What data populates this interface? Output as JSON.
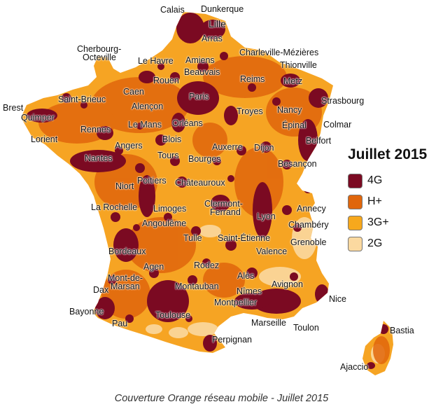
{
  "legend": {
    "title": "Juillet 2015",
    "items": [
      {
        "label": "4G",
        "color": "#7b0a22"
      },
      {
        "label": "H+",
        "color": "#e0660c"
      },
      {
        "label": "3G+",
        "color": "#f7a81c"
      },
      {
        "label": "2G",
        "color": "#fbd9a0"
      }
    ]
  },
  "caption": "Couverture Orange réseau mobile - Juillet 2015",
  "cities": [
    "Calais",
    "Dunkerque",
    "Lille",
    "Arras",
    "Cherbourg-",
    "Octeville",
    "Le Havre",
    "Amiens",
    "Charleville-Mézières",
    "Thionville",
    "Beauvais",
    "Rouen",
    "Reims",
    "Metz",
    "Caen",
    "Saint-Brieuc",
    "Paris",
    "Brest",
    "Strasbourg",
    "Alençon",
    "Troyes",
    "Nancy",
    "Quimper",
    "Rennes",
    "Le Mans",
    "Orléans",
    "Épinal",
    "Colmar",
    "Lorient",
    "Blois",
    "Belfort",
    "Angers",
    "Auxerre",
    "Dijon",
    "Nantes",
    "Tours",
    "Bourges",
    "Besançon",
    "Niort",
    "Poitiers",
    "Châteauroux",
    "Annecy",
    "La Rochelle",
    "Limoges",
    "Clermont-",
    "Ferrand",
    "Lyon",
    "Chambéry",
    "Angoulême",
    "Tulle",
    "Saint-Étienne",
    "Grenoble",
    "Valence",
    "Bordeaux",
    "Agen",
    "Rodez",
    "Mont-de-",
    "Marsan",
    "Alès",
    "Avignon",
    "Dax",
    "Montauban",
    "Nîmes",
    "Montpellier",
    "Nice",
    "Bayonne",
    "Toulouse",
    "Marseille",
    "Pau",
    "Toulon",
    "Bastia",
    "Perpignan",
    "Ajaccio"
  ]
}
